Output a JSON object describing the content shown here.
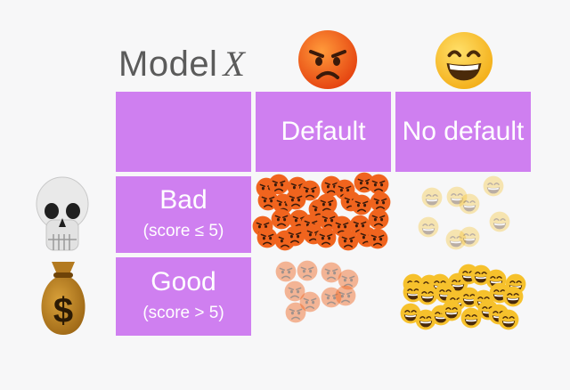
{
  "title": {
    "text": "Model",
    "variable": "X"
  },
  "columns": [
    {
      "label": "Default",
      "icon": "angry-face-icon"
    },
    {
      "label": "No default",
      "icon": "grinning-face-icon"
    }
  ],
  "rows": [
    {
      "label": "Bad",
      "sublabel": "(score ≤ 5)",
      "icon": "skull-icon"
    },
    {
      "label": "Good",
      "sublabel": "(score > 5)",
      "icon": "money-bag-icon",
      "bag_symbol": "$"
    }
  ],
  "colors": {
    "cell": "#cf7ff0",
    "angry": "#f0641e",
    "happy": "#f6c12c",
    "background": "#f7f7f8"
  },
  "cells": [
    {
      "row": "Bad",
      "column": "Default",
      "icon": "angry-face-icon",
      "count": 32,
      "opacity": 1.0
    },
    {
      "row": "Bad",
      "column": "No default",
      "icon": "grinning-face-icon",
      "count": 8,
      "opacity": 0.35
    },
    {
      "row": "Good",
      "column": "Default",
      "icon": "angry-face-icon",
      "count": 9,
      "opacity": 0.45
    },
    {
      "row": "Good",
      "column": "No default",
      "icon": "grinning-face-icon",
      "count": 24,
      "opacity": 1.0
    }
  ]
}
